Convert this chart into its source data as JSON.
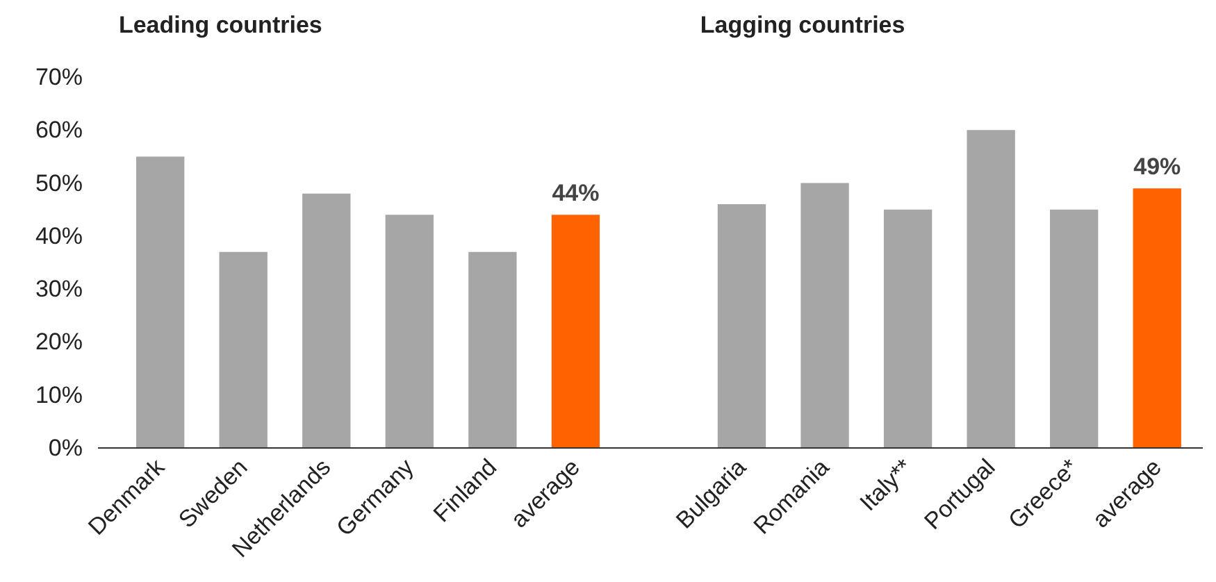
{
  "chart_data": {
    "type": "bar",
    "annotations": [
      "Leading countries",
      "Lagging countries"
    ],
    "categories": [
      "Denmark",
      "Sweden",
      "Netherlands",
      "Germany",
      "Finland",
      "average",
      null,
      "Bulgaria",
      "Romania",
      "Italy**",
      "Portugal",
      "Greece*",
      "average"
    ],
    "values": [
      55,
      37,
      48,
      44,
      37,
      44,
      null,
      46,
      50,
      45,
      60,
      45,
      49
    ],
    "colors": [
      "#a6a6a6",
      "#a6a6a6",
      "#a6a6a6",
      "#a6a6a6",
      "#a6a6a6",
      "#ff6200",
      null,
      "#a6a6a6",
      "#a6a6a6",
      "#a6a6a6",
      "#a6a6a6",
      "#a6a6a6",
      "#ff6200"
    ],
    "value_labels": [
      null,
      null,
      null,
      null,
      null,
      "44%",
      null,
      null,
      null,
      null,
      null,
      null,
      "49%"
    ],
    "ylim": [
      0,
      70
    ],
    "yticks": [
      {
        "value": 0,
        "label": "0%"
      },
      {
        "value": 10,
        "label": "10%"
      },
      {
        "value": 20,
        "label": "20%"
      },
      {
        "value": 30,
        "label": "30%"
      },
      {
        "value": 40,
        "label": "40%"
      },
      {
        "value": 50,
        "label": "50%"
      },
      {
        "value": 60,
        "label": "60%"
      },
      {
        "value": 70,
        "label": "70%"
      }
    ],
    "grid": false
  }
}
